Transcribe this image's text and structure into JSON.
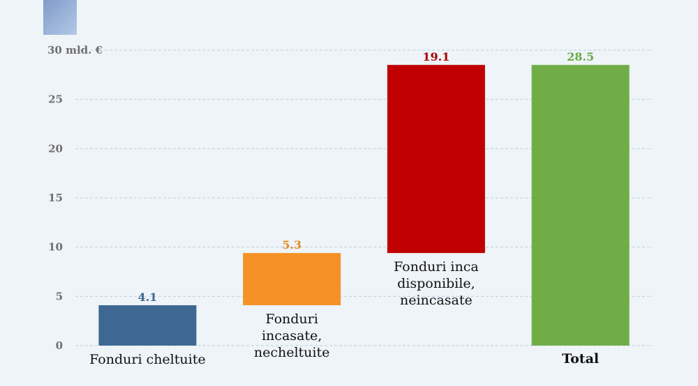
{
  "chart_data": {
    "type": "bar",
    "subtype": "waterfall",
    "y_unit_label": "mld. €",
    "ylim": [
      0,
      30
    ],
    "yticks": [
      0,
      5,
      10,
      15,
      20,
      25,
      30
    ],
    "grid": true,
    "categories": [
      "Fonduri cheltuite",
      "Fonduri incasate, necheltuite",
      "Fonduri inca disponibile, neincasate",
      "Total"
    ],
    "bars": [
      {
        "category_lines": [
          "Fonduri cheltuite"
        ],
        "value": 4.1,
        "value_label": "4.1",
        "base": 0,
        "color": "#3e6892",
        "label_color": "#3e6892",
        "label_position": "below",
        "bold": false
      },
      {
        "category_lines": [
          "Fonduri",
          "incasate,",
          "necheltuite"
        ],
        "value": 5.3,
        "value_label": "5.3",
        "base": 4.1,
        "color": "#f59125",
        "label_color": "#e8891e",
        "label_position": "below",
        "bold": false
      },
      {
        "category_lines": [
          "Fonduri inca",
          "disponibile,",
          "neincasate"
        ],
        "value": 19.1,
        "value_label": "19.1",
        "base": 9.4,
        "color": "#c00000",
        "label_color": "#a80000",
        "label_position": "below",
        "bold": false
      },
      {
        "category_lines": [
          "Total"
        ],
        "value": 28.5,
        "value_label": "28.5",
        "base": 0,
        "color": "#70ad47",
        "label_color": "#6aaa44",
        "label_position": "bottom",
        "bold": true
      }
    ]
  }
}
